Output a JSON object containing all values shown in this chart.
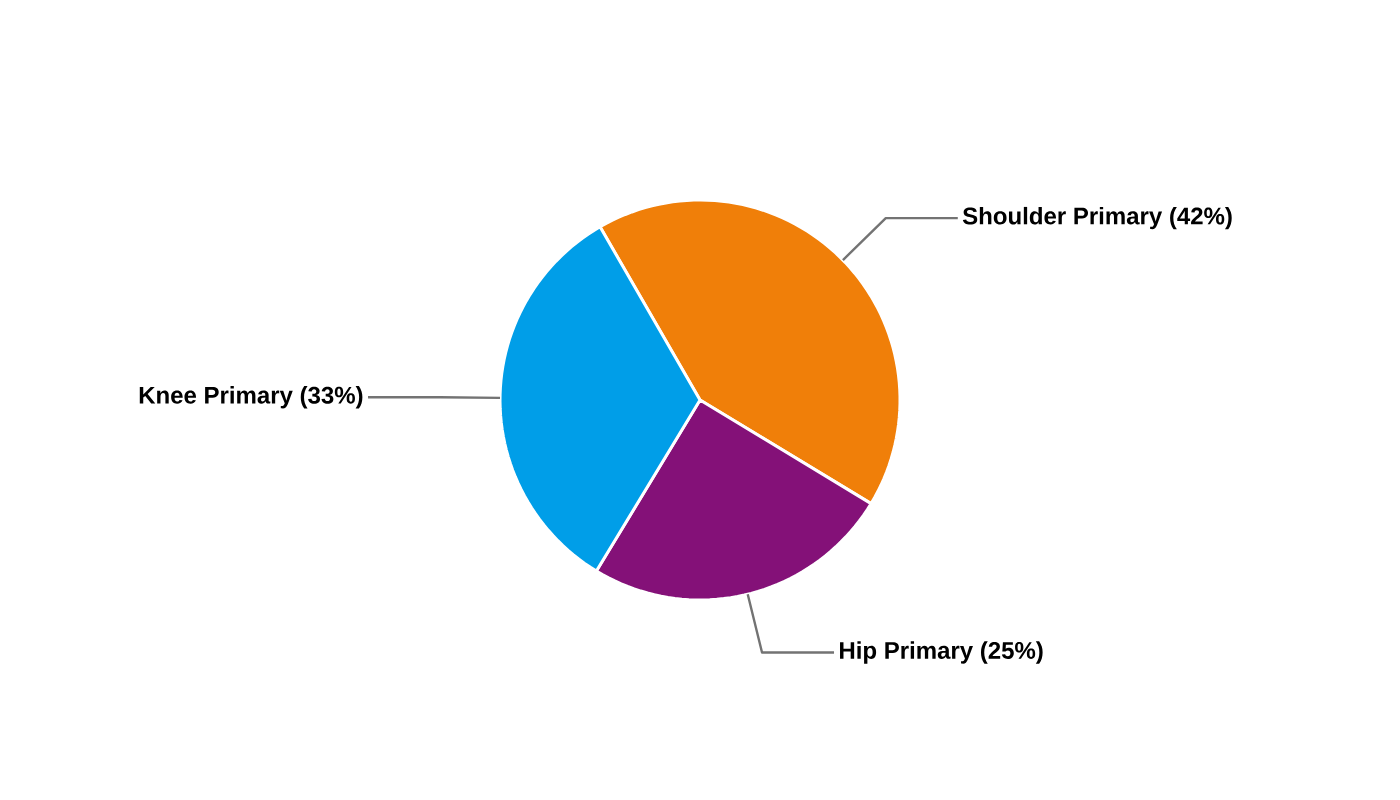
{
  "chart_data": {
    "type": "pie",
    "categories": [
      "Shoulder Primary (42%)",
      "Hip Primary (25%)",
      "Knee Primary (33%)"
    ],
    "values": [
      42,
      25,
      33
    ],
    "colors": [
      "#f07f09",
      "#841178",
      "#009ee8"
    ]
  }
}
